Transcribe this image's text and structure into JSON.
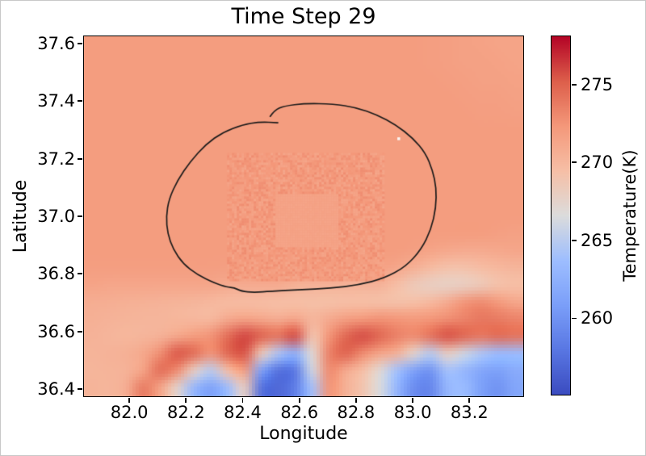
{
  "figure": {
    "background": "#ffffff",
    "border_color": "#c8c8c8"
  },
  "chart_data": {
    "type": "heatmap",
    "title": "Time Step 29",
    "xlabel": "Longitude",
    "ylabel": "Latitude",
    "x_range": [
      81.84,
      83.39
    ],
    "y_range": [
      36.375,
      37.625
    ],
    "x_ticks": [
      82.0,
      82.2,
      82.4,
      82.6,
      82.8,
      83.0,
      83.2
    ],
    "y_ticks": [
      36.4,
      36.6,
      36.8,
      37.0,
      37.2,
      37.4,
      37.6
    ],
    "grid_on": false,
    "colormap": "coolwarm",
    "colormap_stops": [
      "#3b4cc0",
      "#5977e3",
      "#7b9ff9",
      "#9ebeff",
      "#dcdcdc",
      "#f6bfa6",
      "#f4987a",
      "#dd5f4b",
      "#b40426"
    ],
    "colorbar": {
      "label": "Temperature(K)",
      "ticks": [
        260,
        265,
        270,
        275
      ],
      "vmin": 255.1,
      "vmax": 278.1
    },
    "colors": {
      "spines": "#000000",
      "contour": "#1a1a1a",
      "white_dot": "#fbf7f5"
    },
    "grid_lons": [
      81.84,
      81.9,
      81.96,
      82.02,
      82.08,
      82.15,
      82.21,
      82.27,
      82.33,
      82.4,
      82.46,
      82.52,
      82.58,
      82.64,
      82.71,
      82.77,
      82.83,
      82.89,
      82.95,
      83.02,
      83.08,
      83.14,
      83.2,
      83.26,
      83.33,
      83.39
    ],
    "grid_lats": [
      37.625,
      37.5625,
      37.5,
      37.4375,
      37.375,
      37.3125,
      37.25,
      37.1875,
      37.125,
      37.0625,
      37.0,
      36.9375,
      36.875,
      36.8125,
      36.75,
      36.6875,
      36.625,
      36.5625,
      36.5,
      36.4375,
      36.375
    ],
    "temperature_grid": [
      [
        272,
        272,
        272,
        272,
        272,
        272,
        272,
        272,
        272,
        272,
        272,
        272,
        272,
        272,
        272,
        272,
        272,
        272,
        272,
        272,
        271.9,
        271.8,
        271.7,
        271.6,
        271.5,
        271.5
      ],
      [
        272,
        272,
        272,
        272,
        272,
        272,
        272,
        272,
        272,
        272,
        272,
        272,
        272,
        272,
        272,
        272,
        272,
        272,
        272,
        272,
        271.9,
        271.8,
        271.7,
        271.7,
        271.6,
        271.5
      ],
      [
        272,
        272,
        272,
        272,
        272,
        272,
        272,
        272,
        272,
        272,
        272,
        272,
        272,
        272,
        272,
        272,
        272,
        272,
        272,
        272,
        272,
        271.9,
        271.8,
        271.7,
        271.7,
        271.6
      ],
      [
        272,
        272,
        272,
        272,
        272,
        272,
        272,
        272,
        272,
        272,
        272,
        272,
        272,
        272,
        272,
        272,
        272,
        272,
        272,
        272,
        272,
        272,
        271.9,
        271.8,
        271.8,
        271.7
      ],
      [
        272,
        272,
        272,
        272,
        272,
        272,
        272,
        272,
        272,
        272,
        272,
        272,
        272,
        272,
        272,
        272,
        272,
        272,
        272,
        272,
        272,
        272,
        272,
        271.9,
        271.9,
        271.8
      ],
      [
        272,
        272,
        272,
        272,
        272,
        272,
        272,
        272,
        272,
        272,
        272,
        272,
        272,
        272,
        272,
        272,
        272,
        272,
        272,
        272,
        272,
        272,
        272,
        272,
        272,
        272
      ],
      [
        272,
        272,
        272,
        272,
        272,
        272,
        272,
        272,
        272,
        272,
        272,
        272,
        272,
        272,
        272,
        272,
        272,
        272,
        272,
        272,
        272,
        272,
        272,
        272,
        272,
        272
      ],
      [
        272,
        272,
        272,
        272,
        272,
        272,
        272,
        272,
        272,
        272,
        272,
        272,
        272,
        272,
        272,
        272,
        272,
        272,
        272,
        272,
        272,
        272,
        272,
        272,
        272,
        272
      ],
      [
        272,
        272,
        272,
        272,
        272,
        272,
        272,
        272,
        272,
        272,
        272,
        272,
        272,
        272,
        272,
        272,
        272,
        272,
        272,
        272,
        272,
        272,
        272,
        272,
        272,
        272
      ],
      [
        272,
        272,
        272,
        272,
        272,
        272,
        272,
        272,
        272,
        272,
        272,
        272,
        272,
        272,
        272,
        272,
        272,
        272,
        272,
        272,
        272,
        272,
        272,
        272,
        272,
        272
      ],
      [
        272,
        272,
        272,
        272,
        272,
        272,
        272,
        272,
        272,
        272,
        272,
        272,
        272,
        272,
        272,
        272,
        272,
        272,
        272,
        272,
        272,
        272,
        272,
        272,
        272,
        272
      ],
      [
        272,
        272,
        272,
        272,
        272,
        272,
        272,
        272,
        272,
        272,
        272,
        272,
        272,
        272,
        272,
        272,
        272,
        272,
        272,
        272,
        272,
        272,
        272,
        272,
        271.8,
        271.7
      ],
      [
        272,
        272,
        272,
        272,
        272,
        272,
        272,
        272,
        272,
        272,
        272,
        272,
        272,
        272,
        272,
        272,
        272,
        272,
        272,
        271.8,
        271.5,
        271.2,
        271.0,
        271.0,
        271.2,
        271.3
      ],
      [
        271.9,
        271.9,
        271.9,
        271.9,
        271.9,
        271.9,
        271.9,
        271.9,
        271.8,
        271.8,
        271.8,
        271.8,
        271.7,
        271.7,
        271.7,
        271.7,
        271.6,
        271.6,
        271.3,
        270.6,
        269.8,
        269.2,
        269.2,
        269.6,
        270.0,
        270.2
      ],
      [
        271.5,
        271.3,
        271.3,
        271.3,
        271.3,
        271.3,
        271.3,
        271.3,
        271.0,
        271.0,
        271.0,
        271.0,
        270.5,
        270.4,
        270.4,
        270.4,
        270.4,
        270.4,
        269.5,
        268.5,
        268.0,
        267.8,
        268.0,
        268.5,
        269.2,
        269.5
      ],
      [
        270.8,
        270.7,
        270.6,
        270.5,
        270.4,
        270.3,
        270.2,
        270.0,
        269.8,
        269.7,
        269.6,
        269.5,
        269.5,
        269.4,
        269.4,
        269.5,
        269.5,
        269.4,
        269.3,
        269.5,
        270.0,
        271.0,
        272.5,
        273.0,
        272.3,
        271.3
      ],
      [
        270.6,
        270.4,
        270.3,
        270.2,
        270.2,
        270.1,
        270.0,
        269.9,
        271.0,
        271.5,
        271.2,
        270.8,
        271.3,
        270.2,
        271.0,
        271.8,
        272.2,
        272.6,
        272.4,
        272.2,
        272.4,
        272.8,
        273.4,
        274.0,
        273.8,
        273.4
      ],
      [
        270.4,
        270.2,
        270.1,
        270.2,
        270.4,
        271.2,
        272.0,
        272.6,
        274.5,
        276.0,
        275.0,
        274.2,
        275.8,
        269.0,
        272.5,
        274.8,
        275.8,
        274.8,
        273.6,
        273.0,
        274.2,
        275.6,
        274.8,
        274.0,
        274.6,
        274.2
      ],
      [
        270.3,
        270.4,
        270.6,
        271.2,
        272.8,
        275.4,
        274.6,
        272.6,
        274.8,
        275.6,
        268.5,
        264.5,
        262.5,
        267.0,
        273.5,
        275.0,
        273.0,
        271.5,
        270.5,
        267.5,
        265.0,
        268.0,
        266.0,
        264.5,
        263.5,
        263.5
      ],
      [
        270.2,
        270.3,
        270.4,
        271.5,
        274.5,
        273.0,
        268.0,
        265.0,
        269.5,
        272.0,
        261.0,
        257.5,
        258.0,
        266.0,
        273.0,
        271.0,
        269.5,
        267.0,
        264.0,
        261.0,
        260.0,
        264.0,
        263.0,
        261.5,
        261.0,
        262.0
      ],
      [
        270.3,
        270.2,
        270.8,
        273.8,
        271.5,
        267.5,
        263.0,
        261.0,
        263.5,
        268.0,
        257.5,
        257.0,
        258.5,
        264.0,
        272.5,
        270.5,
        269.0,
        266.5,
        263.0,
        259.5,
        259.0,
        263.0,
        263.5,
        261.0,
        260.0,
        261.5
      ]
    ],
    "contour": {
      "color": "#1a1a1a",
      "points": [
        [
          82.497,
          37.347
        ],
        [
          82.512,
          37.368
        ],
        [
          82.545,
          37.383
        ],
        [
          82.62,
          37.392
        ],
        [
          82.72,
          37.39
        ],
        [
          82.8,
          37.378
        ],
        [
          82.875,
          37.352
        ],
        [
          82.94,
          37.318
        ],
        [
          83.0,
          37.272
        ],
        [
          83.045,
          37.22
        ],
        [
          83.07,
          37.16
        ],
        [
          83.083,
          37.1
        ],
        [
          83.082,
          37.03
        ],
        [
          83.065,
          36.955
        ],
        [
          83.03,
          36.885
        ],
        [
          82.975,
          36.825
        ],
        [
          82.9,
          36.785
        ],
        [
          82.81,
          36.762
        ],
        [
          82.71,
          36.75
        ],
        [
          82.6,
          36.745
        ],
        [
          82.5,
          36.74
        ],
        [
          82.44,
          36.735
        ],
        [
          82.395,
          36.74
        ],
        [
          82.37,
          36.752
        ],
        [
          82.345,
          36.754
        ],
        [
          82.3,
          36.768
        ],
        [
          82.24,
          36.797
        ],
        [
          82.19,
          36.835
        ],
        [
          82.155,
          36.885
        ],
        [
          82.135,
          36.94
        ],
        [
          82.13,
          37.0
        ],
        [
          82.14,
          37.06
        ],
        [
          82.17,
          37.125
        ],
        [
          82.215,
          37.19
        ],
        [
          82.27,
          37.25
        ],
        [
          82.33,
          37.292
        ],
        [
          82.4,
          37.318
        ],
        [
          82.46,
          37.328
        ],
        [
          82.524,
          37.325
        ]
      ]
    },
    "annotations": {
      "noisy_square_ring": {
        "outer_lon": [
          82.345,
          82.895
        ],
        "outer_lat": [
          36.78,
          37.22
        ],
        "inner_lon": [
          82.51,
          82.735
        ],
        "inner_lat": [
          36.895,
          37.08
        ],
        "ring_temp_mean": 272.1,
        "ring_temp_noise": 0.85,
        "inner_temp": 271.5
      },
      "white_dot": {
        "lon": 82.95,
        "lat": 37.27
      }
    }
  }
}
